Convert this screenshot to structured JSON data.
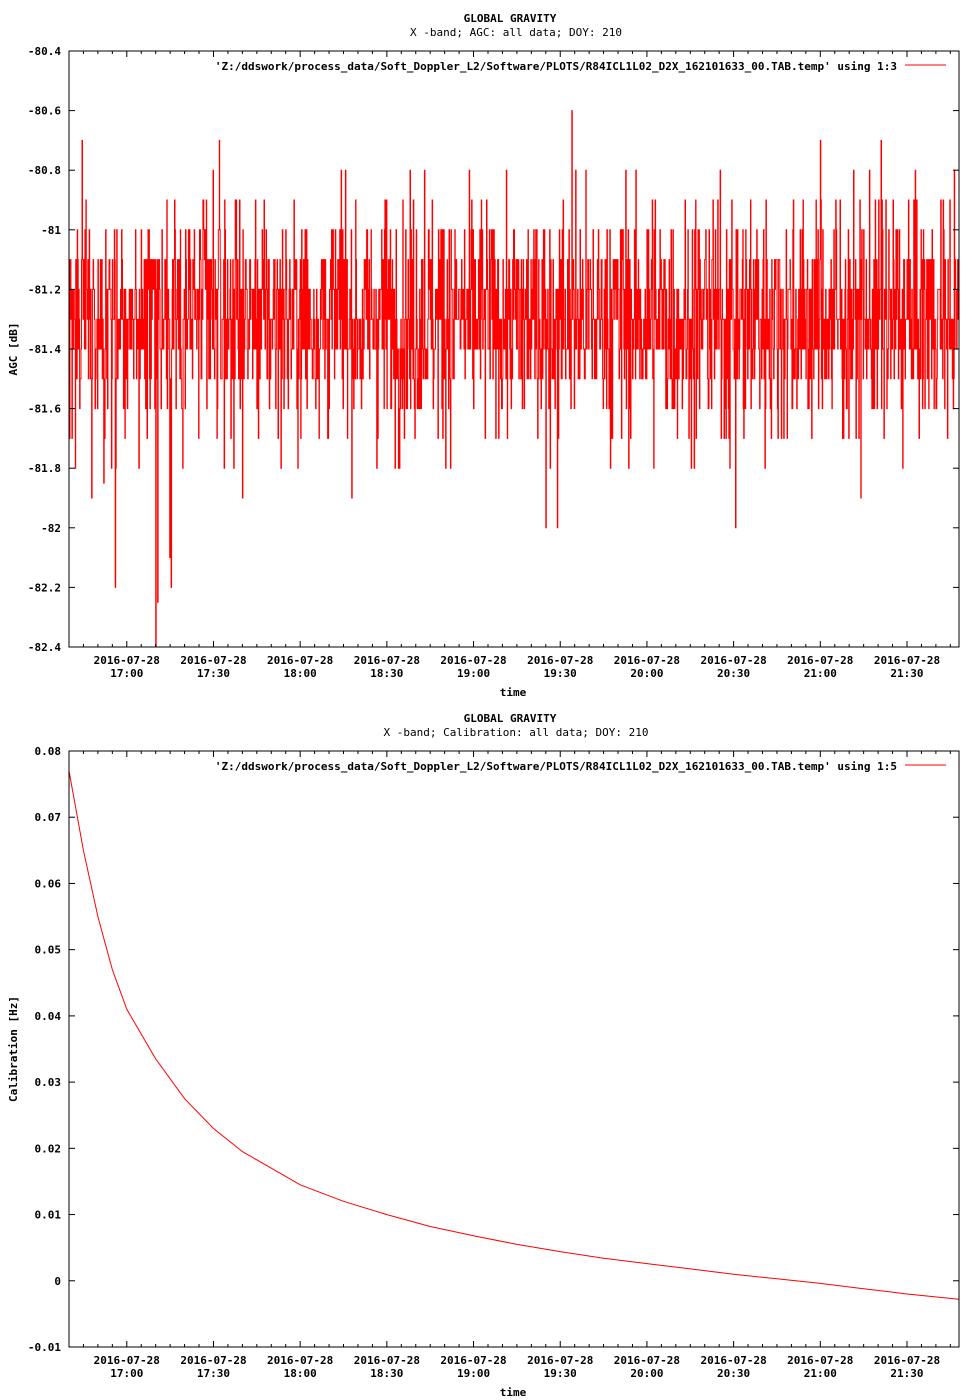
{
  "colors": {
    "series": "#ff0000",
    "axis": "#000000",
    "background": "#ffffff"
  },
  "chart_data": [
    {
      "type": "line",
      "title": "GLOBAL GRAVITY",
      "subtitle": "X -band; AGC: all data; DOY: 210",
      "xlabel": "time",
      "ylabel": "AGC [dB]",
      "xlim": [
        "2016-07-28 16:40",
        "2016-07-28 21:48"
      ],
      "ylim": [
        -82.4,
        -80.4
      ],
      "yticks": [
        -80.4,
        -80.6,
        -80.8,
        -81,
        -81.2,
        -81.4,
        -81.6,
        -81.8,
        -82,
        -82.2,
        -82.4
      ],
      "ytick_labels": [
        "-80.4",
        "-80.6",
        "-80.8",
        "-81",
        "-81.2",
        "-81.4",
        "-81.6",
        "-81.8",
        "-82",
        "-82.2",
        "-82.4"
      ],
      "xticks": [
        "2016-07-28 17:00",
        "2016-07-28 17:30",
        "2016-07-28 18:00",
        "2016-07-28 18:30",
        "2016-07-28 19:00",
        "2016-07-28 19:30",
        "2016-07-28 20:00",
        "2016-07-28 20:30",
        "2016-07-28 21:00",
        "2016-07-28 21:30"
      ],
      "xtick_labels": [
        [
          "2016-07-28",
          "17:00"
        ],
        [
          "2016-07-28",
          "17:30"
        ],
        [
          "2016-07-28",
          "18:00"
        ],
        [
          "2016-07-28",
          "18:30"
        ],
        [
          "2016-07-28",
          "19:00"
        ],
        [
          "2016-07-28",
          "19:30"
        ],
        [
          "2016-07-28",
          "20:00"
        ],
        [
          "2016-07-28",
          "20:30"
        ],
        [
          "2016-07-28",
          "21:00"
        ],
        [
          "2016-07-28",
          "21:30"
        ]
      ],
      "legend_position": "top-right",
      "grid": false,
      "series": [
        {
          "name": "'Z:/ddswork/process_data/Soft_Doppler_L2/Software/PLOTS/R84ICL1L02_D2X_162101633_00.TAB.temp' using 1:3",
          "data_description_values_range": [
            -82.4,
            -80.6
          ],
          "noise": {
            "mean": -81.3,
            "std": 0.2,
            "step": 0.1,
            "seed": 210,
            "time_step_seconds": 10
          },
          "spikes": [
            {
              "x": "2016-07-28 16:44:30",
              "y": -80.7
            },
            {
              "x": "2016-07-28 16:52:00",
              "y": -81.85
            },
            {
              "x": "2016-07-28 16:56:00",
              "y": -82.2
            },
            {
              "x": "2016-07-28 17:10:00",
              "y": -82.4
            },
            {
              "x": "2016-07-28 17:10:40",
              "y": -82.25
            },
            {
              "x": "2016-07-28 17:14:50",
              "y": -82.1
            },
            {
              "x": "2016-07-28 17:15:20",
              "y": -82.2
            },
            {
              "x": "2016-07-28 17:32:00",
              "y": -80.7
            },
            {
              "x": "2016-07-28 18:43:00",
              "y": -80.8
            },
            {
              "x": "2016-07-28 19:25:00",
              "y": -82.0
            },
            {
              "x": "2016-07-28 19:29:00",
              "y": -82.0
            },
            {
              "x": "2016-07-28 19:34:00",
              "y": -80.6
            },
            {
              "x": "2016-07-28 20:30:40",
              "y": -82.0
            },
            {
              "x": "2016-07-28 21:00:00",
              "y": -80.7
            },
            {
              "x": "2016-07-28 21:21:00",
              "y": -80.7
            },
            {
              "x": "2016-07-28 21:40:00",
              "y": -81.6
            }
          ]
        }
      ]
    },
    {
      "type": "line",
      "title": "GLOBAL GRAVITY",
      "subtitle": "X -band; Calibration: all data; DOY: 210",
      "xlabel": "time",
      "ylabel": "Calibration [Hz]",
      "xlim": [
        "2016-07-28 16:40",
        "2016-07-28 21:48"
      ],
      "ylim": [
        -0.01,
        0.08
      ],
      "yticks": [
        0.08,
        0.07,
        0.06,
        0.05,
        0.04,
        0.03,
        0.02,
        0.01,
        0,
        -0.01
      ],
      "ytick_labels": [
        "0.08",
        "0.07",
        "0.06",
        "0.05",
        "0.04",
        "0.03",
        "0.02",
        "0.01",
        "0",
        "-0.01"
      ],
      "xticks": [
        "2016-07-28 17:00",
        "2016-07-28 17:30",
        "2016-07-28 18:00",
        "2016-07-28 18:30",
        "2016-07-28 19:00",
        "2016-07-28 19:30",
        "2016-07-28 20:00",
        "2016-07-28 20:30",
        "2016-07-28 21:00",
        "2016-07-28 21:30"
      ],
      "xtick_labels": [
        [
          "2016-07-28",
          "17:00"
        ],
        [
          "2016-07-28",
          "17:30"
        ],
        [
          "2016-07-28",
          "18:00"
        ],
        [
          "2016-07-28",
          "18:30"
        ],
        [
          "2016-07-28",
          "19:00"
        ],
        [
          "2016-07-28",
          "19:30"
        ],
        [
          "2016-07-28",
          "20:00"
        ],
        [
          "2016-07-28",
          "20:30"
        ],
        [
          "2016-07-28",
          "21:00"
        ],
        [
          "2016-07-28",
          "21:30"
        ]
      ],
      "legend_position": "top-right",
      "grid": false,
      "series": [
        {
          "name": "'Z:/ddswork/process_data/Soft_Doppler_L2/Software/PLOTS/R84ICL1L02_D2X_162101633_00.TAB.temp' using 1:5",
          "x": [
            "2016-07-28 16:40",
            "2016-07-28 16:45",
            "2016-07-28 16:50",
            "2016-07-28 16:55",
            "2016-07-28 17:00",
            "2016-07-28 17:10",
            "2016-07-28 17:20",
            "2016-07-28 17:30",
            "2016-07-28 17:40",
            "2016-07-28 17:50",
            "2016-07-28 18:00",
            "2016-07-28 18:15",
            "2016-07-28 18:30",
            "2016-07-28 18:45",
            "2016-07-28 19:00",
            "2016-07-28 19:15",
            "2016-07-28 19:30",
            "2016-07-28 19:45",
            "2016-07-28 20:00",
            "2016-07-28 20:15",
            "2016-07-28 20:30",
            "2016-07-28 20:45",
            "2016-07-28 21:00",
            "2016-07-28 21:15",
            "2016-07-28 21:30",
            "2016-07-28 21:48"
          ],
          "y": [
            0.077,
            0.065,
            0.055,
            0.047,
            0.041,
            0.0335,
            0.0275,
            0.023,
            0.0195,
            0.017,
            0.0145,
            0.012,
            0.01,
            0.0082,
            0.0068,
            0.0055,
            0.0044,
            0.0034,
            0.0026,
            0.0018,
            0.001,
            0.0003,
            -0.0004,
            -0.0012,
            -0.002,
            -0.0028
          ]
        }
      ]
    }
  ]
}
